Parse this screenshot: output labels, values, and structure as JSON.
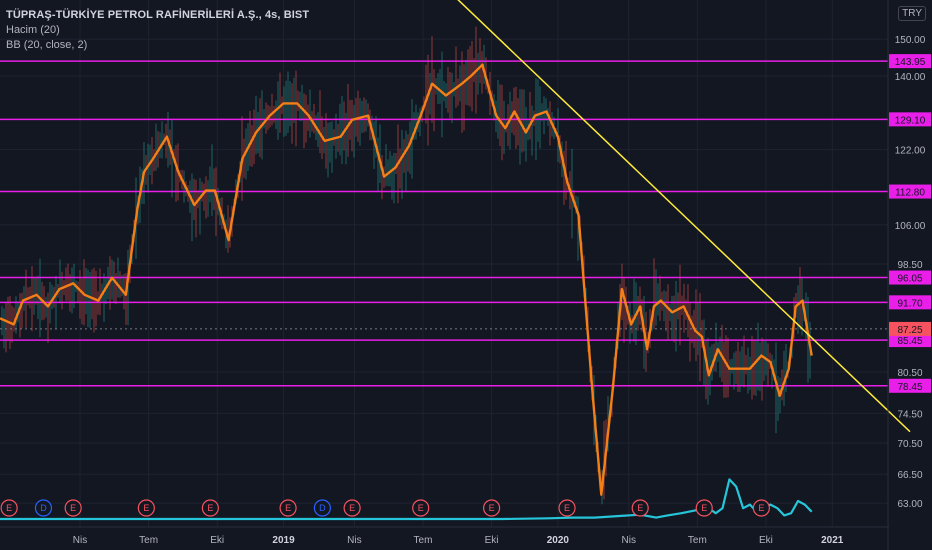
{
  "header": {
    "title": "TÜPRAŞ-TÜRKİYE PETROL RAFİNERİLERİ A.Ş., 4s, BIST",
    "indicators": [
      "Hacim (20)",
      "BB (20, close, 2)"
    ],
    "currency": "TRY"
  },
  "chart_data": {
    "type": "line",
    "title": "TÜPRAŞ-TÜRKİYE PETROL RAFİNERİLERİ A.Ş., 4s, BIST",
    "xlabel": "",
    "ylabel": "",
    "ylim": [
      60.5,
      160.0
    ],
    "y_scale": "log",
    "y_ticks": [
      63.0,
      66.5,
      70.5,
      74.5,
      80.5,
      98.5,
      106.0,
      122.0,
      140.0,
      150.0
    ],
    "x_ticks": [
      {
        "label": "Nis",
        "month": 3.5,
        "year": false
      },
      {
        "label": "Tem",
        "month": 6.5,
        "year": false
      },
      {
        "label": "Eki",
        "month": 9.5,
        "year": false
      },
      {
        "label": "2019",
        "month": 12.4,
        "year": true
      },
      {
        "label": "Nis",
        "month": 15.5,
        "year": false
      },
      {
        "label": "Tem",
        "month": 18.5,
        "year": false
      },
      {
        "label": "Eki",
        "month": 21.5,
        "year": false
      },
      {
        "label": "2020",
        "month": 24.4,
        "year": true
      },
      {
        "label": "Nis",
        "month": 27.5,
        "year": false
      },
      {
        "label": "Tem",
        "month": 30.5,
        "year": false
      },
      {
        "label": "Eki",
        "month": 33.5,
        "year": false
      },
      {
        "label": "2021",
        "month": 36.4,
        "year": true
      }
    ],
    "x_range": [
      0.0,
      39.8
    ],
    "series": [
      {
        "name": "BB (20, close, 2)",
        "color": "#f57f17",
        "x": [
          0.0,
          0.6,
          1.0,
          1.6,
          2.1,
          2.6,
          3.2,
          3.7,
          4.3,
          4.9,
          5.5,
          6.0,
          6.3,
          6.7,
          7.3,
          7.8,
          8.5,
          9.0,
          9.4,
          10.0,
          10.6,
          11.2,
          11.8,
          12.4,
          13.0,
          13.5,
          14.2,
          14.9,
          15.4,
          16.1,
          16.8,
          17.3,
          17.9,
          18.4,
          18.9,
          19.5,
          20.2,
          20.6,
          21.1,
          21.7,
          22.1,
          22.5,
          23.0,
          23.4,
          23.9,
          24.4,
          24.8,
          25.3,
          25.9,
          26.3,
          26.8,
          27.2,
          27.6,
          28.0,
          28.3,
          28.6,
          28.9,
          29.4,
          29.9,
          30.4,
          30.7,
          31.0,
          31.4,
          31.9,
          32.4,
          32.8,
          33.3,
          33.7,
          34.1,
          34.5,
          34.8,
          35.1,
          35.5
        ],
        "values": [
          89,
          88,
          92,
          93,
          91,
          94,
          95,
          93,
          92,
          96,
          93,
          109,
          117,
          120,
          125,
          117,
          110,
          113,
          113,
          103,
          120,
          126,
          130,
          133,
          133,
          130,
          124,
          125,
          129,
          130,
          116,
          118,
          123,
          130,
          138,
          135,
          138,
          140,
          143,
          130,
          127,
          131,
          126,
          130,
          131,
          125,
          115,
          108,
          78,
          64,
          78,
          94,
          88,
          91,
          84,
          91,
          92,
          90,
          91,
          87,
          86,
          80,
          84,
          81,
          81,
          81,
          83,
          82,
          77,
          81,
          91,
          92,
          83
        ]
      },
      {
        "name": "Hacim (20)",
        "color": "#26c6da",
        "x": [
          0,
          2,
          4,
          6,
          8,
          10,
          12,
          14,
          16,
          18,
          20,
          22,
          24,
          25,
          26,
          27,
          28,
          28.7,
          29.2,
          29.8,
          30.4,
          31.0,
          31.3,
          31.6,
          31.9,
          32.2,
          32.5,
          32.8,
          33.1,
          33.4,
          33.7,
          34.0,
          34.3,
          34.6,
          34.9,
          35.2,
          35.5
        ],
        "values": [
          1.0,
          1.0,
          1.0,
          1.0,
          1.0,
          1.0,
          1.0,
          1.0,
          1.0,
          1.0,
          1.0,
          1.0,
          1.1,
          1.2,
          1.2,
          1.4,
          1.6,
          1.2,
          1.5,
          1.8,
          2.2,
          2.5,
          1.8,
          2.5,
          6.5,
          5.5,
          2.5,
          3.0,
          2.0,
          2.5,
          3.0,
          2.5,
          1.5,
          1.8,
          3.5,
          3.0,
          2.0
        ]
      }
    ],
    "horizontal_levels": [
      143.95,
      129.1,
      112.8,
      96.05,
      91.7,
      85.45,
      78.45
    ],
    "current_price": 87.25,
    "trendline": {
      "color": "#ffeb3b",
      "x": [
        19.5,
        39.8
      ],
      "values": [
        165,
        72
      ]
    },
    "events": [
      {
        "label": "E",
        "month": 0.4,
        "type": "earnings"
      },
      {
        "label": "D",
        "month": 1.9,
        "type": "dividend"
      },
      {
        "label": "E",
        "month": 3.2,
        "type": "earnings"
      },
      {
        "label": "E",
        "month": 6.4,
        "type": "earnings"
      },
      {
        "label": "E",
        "month": 9.2,
        "type": "earnings"
      },
      {
        "label": "E",
        "month": 12.6,
        "type": "earnings"
      },
      {
        "label": "D",
        "month": 14.1,
        "type": "dividend"
      },
      {
        "label": "E",
        "month": 15.4,
        "type": "earnings"
      },
      {
        "label": "E",
        "month": 18.4,
        "type": "earnings"
      },
      {
        "label": "E",
        "month": 21.5,
        "type": "earnings"
      },
      {
        "label": "E",
        "month": 24.8,
        "type": "earnings"
      },
      {
        "label": "E",
        "month": 28.0,
        "type": "earnings"
      },
      {
        "label": "E",
        "month": 30.8,
        "type": "earnings"
      },
      {
        "label": "E",
        "month": 33.3,
        "type": "earnings"
      }
    ],
    "colors": {
      "background": "#131722",
      "grid": "#1f2330",
      "level_line": "#e91ee9",
      "level_label_bg": "#e91ee9",
      "current_price_bg": "#f7525f",
      "earnings": "#f7525f",
      "dividend": "#2962ff"
    }
  }
}
